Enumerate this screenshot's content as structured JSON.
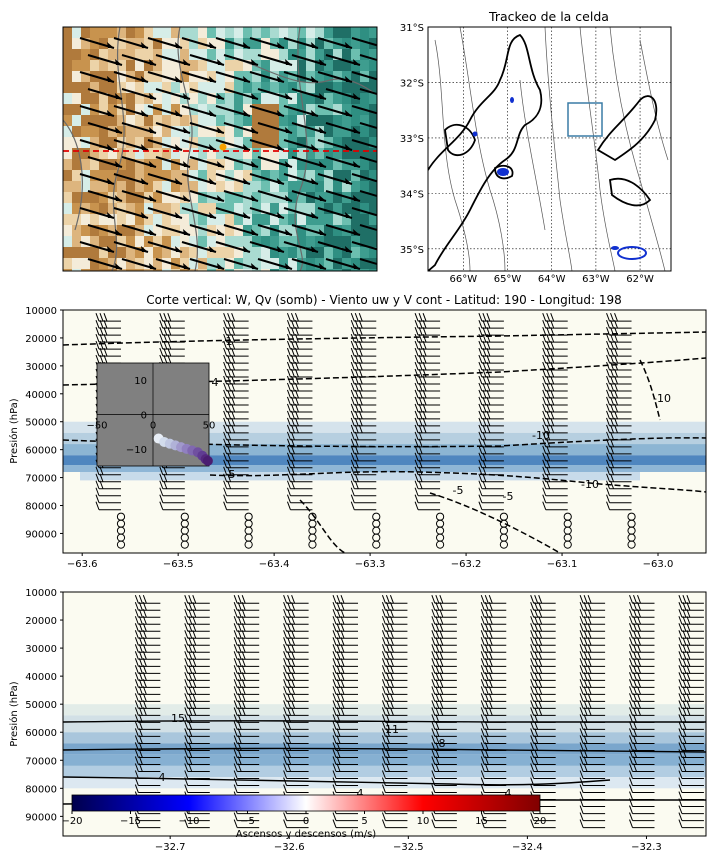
{
  "chart_data": [
    {
      "type": "heatmap",
      "panel": "top-left",
      "title": "",
      "xlabel": "",
      "ylabel": "",
      "overlays": [
        "wind-barbs",
        "dashed-red-horizontal-line",
        "gray-contours",
        "orange-marker"
      ],
      "colors": {
        "dry": "#c8934e",
        "neutral": "#f4ecd9",
        "moist": "#2f8f82",
        "line": "#e00000",
        "marker": "#f5a000"
      }
    },
    {
      "type": "map",
      "panel": "top-right",
      "title": "Trackeo de la celda",
      "x_ticks": [
        "66°W",
        "65°W",
        "64°W",
        "63°W",
        "62°W"
      ],
      "y_ticks": [
        "31°S",
        "32°S",
        "33°S",
        "34°S",
        "35°S"
      ],
      "xlim": [
        -66.8,
        -61.3
      ],
      "ylim": [
        -35.4,
        -31.0
      ],
      "box": {
        "lon": [
          -63.5,
          -62.75
        ],
        "lat": [
          -33.35,
          -32.3
        ],
        "color": "#3a7ca5"
      },
      "grid": true
    },
    {
      "type": "heatmap",
      "panel": "middle",
      "title": "Corte vertical: W, Qv (somb) - Viento uw y V cont - Latitud: 190 - Longitud: 198",
      "xlabel": "",
      "ylabel": "Presión (hPa)",
      "x_ticks": [
        "−63.6",
        "−63.5",
        "−63.4",
        "−63.3",
        "−63.2",
        "−63.1",
        "−63.0"
      ],
      "xlim": [
        -63.62,
        -62.95
      ],
      "y_ticks": [
        "10000",
        "20000",
        "30000",
        "40000",
        "50000",
        "60000",
        "70000",
        "80000",
        "90000"
      ],
      "ylim": [
        97000,
        10000
      ],
      "contour_labels": [
        "-1",
        "4",
        "-10",
        "-10",
        "-5",
        "-5",
        "-5",
        "-10"
      ],
      "inset": {
        "type": "scatter",
        "x_ticks": [
          "−50",
          "0",
          "50"
        ],
        "y_ticks": [
          "10",
          "0",
          "−10"
        ],
        "xlim": [
          -50,
          50
        ],
        "ylim": [
          -15,
          15
        ],
        "points": [
          [
            5,
            -7
          ],
          [
            10,
            -8
          ],
          [
            15,
            -8.5
          ],
          [
            20,
            -9
          ],
          [
            25,
            -9.5
          ],
          [
            30,
            -10
          ],
          [
            35,
            -10.5
          ],
          [
            40,
            -11
          ],
          [
            44,
            -12
          ],
          [
            47,
            -13
          ],
          [
            49,
            -13.5
          ]
        ]
      }
    },
    {
      "type": "heatmap",
      "panel": "bottom",
      "title": "",
      "xlabel": "",
      "ylabel": "Presión (hPa)",
      "x_ticks": [
        "−32.7",
        "−32.6",
        "−32.5",
        "−32.4",
        "−32.3"
      ],
      "xlim": [
        -32.79,
        -32.25
      ],
      "y_ticks": [
        "10000",
        "20000",
        "30000",
        "40000",
        "50000",
        "60000",
        "70000",
        "80000",
        "90000"
      ],
      "ylim": [
        97000,
        10000
      ],
      "contour_labels": [
        "15",
        "11",
        "8",
        "4",
        "4",
        "4"
      ],
      "colorbar": {
        "label": "Ascensos y descensos (m/s)",
        "ticks": [
          "−20",
          "−15",
          "−10",
          "−5",
          "0",
          "5",
          "10",
          "15",
          "20"
        ],
        "range": [
          -20,
          20
        ],
        "colors": [
          "#00004c",
          "#0000ff",
          "#ffffff",
          "#ff0000",
          "#800000"
        ]
      }
    }
  ]
}
